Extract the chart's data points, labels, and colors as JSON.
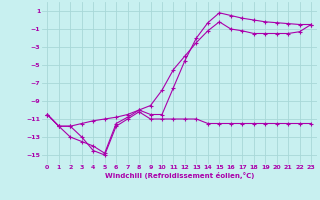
{
  "bg_color": "#c8f0f0",
  "grid_color": "#a8d8d8",
  "line_color": "#aa00aa",
  "xlabel": "Windchill (Refroidissement éolien,°C)",
  "xlim": [
    -0.5,
    23.5
  ],
  "ylim": [
    -16,
    2
  ],
  "yticks": [
    1,
    -1,
    -3,
    -5,
    -7,
    -9,
    -11,
    -13,
    -15
  ],
  "xticks": [
    0,
    1,
    2,
    3,
    4,
    5,
    6,
    7,
    8,
    9,
    10,
    11,
    12,
    13,
    14,
    15,
    16,
    17,
    18,
    19,
    20,
    21,
    22,
    23
  ],
  "line1_x": [
    0,
    1,
    2,
    3,
    4,
    5,
    6,
    7,
    8,
    9,
    10,
    11,
    12,
    13,
    14,
    15,
    16,
    17,
    18,
    19,
    20,
    21,
    22,
    23
  ],
  "line1_y": [
    -10.5,
    -11.8,
    -11.8,
    -13.0,
    -14.5,
    -15.0,
    -11.8,
    -11.0,
    -10.2,
    -11.0,
    -11.0,
    -11.0,
    -11.0,
    -11.0,
    -11.5,
    -11.5,
    -11.5,
    -11.5,
    -11.5,
    -11.5,
    -11.5,
    -11.5,
    -11.5,
    -11.5
  ],
  "line2_x": [
    0,
    1,
    2,
    3,
    4,
    5,
    6,
    7,
    8,
    9,
    10,
    11,
    12,
    13,
    14,
    15,
    16,
    17,
    18,
    19,
    20,
    21,
    22,
    23
  ],
  "line2_y": [
    -10.5,
    -11.8,
    -13.0,
    -13.5,
    -14.0,
    -14.8,
    -11.5,
    -10.8,
    -10.0,
    -10.5,
    -10.5,
    -7.5,
    -4.5,
    -2.0,
    -0.3,
    0.8,
    0.5,
    0.2,
    0.0,
    -0.2,
    -0.3,
    -0.4,
    -0.5,
    -0.5
  ],
  "line3_x": [
    0,
    1,
    2,
    3,
    4,
    5,
    6,
    7,
    8,
    9,
    10,
    11,
    12,
    13,
    14,
    15,
    16,
    17,
    18,
    19,
    20,
    21,
    22,
    23
  ],
  "line3_y": [
    -10.5,
    -11.8,
    -11.8,
    -11.5,
    -11.2,
    -11.0,
    -10.8,
    -10.5,
    -10.0,
    -9.5,
    -7.8,
    -5.5,
    -4.0,
    -2.5,
    -1.2,
    -0.2,
    -1.0,
    -1.2,
    -1.5,
    -1.5,
    -1.5,
    -1.5,
    -1.3,
    -0.5
  ]
}
